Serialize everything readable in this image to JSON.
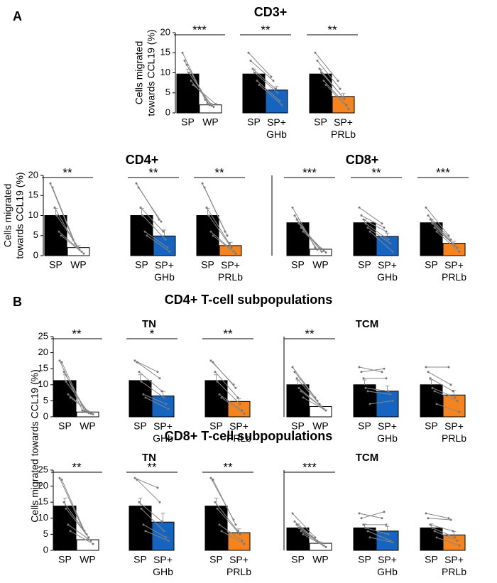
{
  "panel_labels": [
    "A",
    "B"
  ],
  "section_titles": [
    "CD4+ T-cell subpopulations",
    "CD8+ T-cell subpopulations"
  ],
  "shared_ylabel": "Cells migrated  towards CCL19 (%)",
  "chart_data": [
    {
      "type": "paired_bar",
      "title": "CD3+",
      "ylabel": [
        "Cells migrated",
        "towards CCL19 (%)"
      ],
      "ylim": [
        0,
        20
      ],
      "yticks": [
        0,
        5,
        10,
        15,
        20
      ],
      "categories": [
        "SP",
        "WP",
        "SP",
        "SP+ GHb",
        "SP",
        "SP+ PRLb"
      ],
      "values": [
        9.7,
        2,
        9.7,
        5.7,
        9.7,
        4.1
      ],
      "errors": [
        1.2,
        0.4,
        1.2,
        0.9,
        1.2,
        0.7
      ],
      "colors": [
        "#000000",
        "#ffffff",
        "#000000",
        "#1565c0",
        "#000000",
        "#f5841f"
      ],
      "significance": [
        "***",
        "**",
        "**"
      ],
      "pairs": [
        [
          [
            15,
            3.3
          ],
          [
            13,
            2.5
          ],
          [
            12,
            2
          ],
          [
            10,
            1.8
          ],
          [
            8,
            1.5
          ],
          [
            7,
            2.2
          ]
        ],
        [
          [
            15,
            9
          ],
          [
            13,
            8
          ],
          [
            11,
            6
          ],
          [
            10,
            5
          ],
          [
            8,
            3
          ],
          [
            7,
            2
          ]
        ],
        [
          [
            15,
            8
          ],
          [
            13,
            6
          ],
          [
            11,
            4
          ],
          [
            10,
            3.5
          ],
          [
            8,
            2
          ],
          [
            7,
            1
          ]
        ]
      ]
    },
    {
      "type": "paired_bar",
      "title": "CD4+",
      "ylabel": [
        "Cells migrated",
        "towards CCL19 (%)"
      ],
      "ylim": [
        0,
        20
      ],
      "yticks": [
        0,
        5,
        10,
        15,
        20
      ],
      "categories": [
        "SP",
        "WP",
        "SP",
        "SP+ GHb",
        "SP",
        "SP+ PRLb"
      ],
      "values": [
        10,
        2,
        10,
        4.9,
        10,
        2.5
      ],
      "errors": [
        1.8,
        0.5,
        1.8,
        1.5,
        1.8,
        0.8
      ],
      "colors": [
        "#000000",
        "#ffffff",
        "#000000",
        "#1565c0",
        "#000000",
        "#f5841f"
      ],
      "significance": [
        "**",
        "**",
        "**"
      ],
      "pairs": [
        [
          [
            18,
            4
          ],
          [
            17,
            3
          ],
          [
            12,
            2
          ],
          [
            10,
            1.5
          ],
          [
            6,
            1
          ],
          [
            5,
            0.5
          ]
        ],
        [
          [
            18,
            9
          ],
          [
            17,
            8.5
          ],
          [
            12,
            6
          ],
          [
            10,
            4
          ],
          [
            6,
            2
          ],
          [
            5,
            1
          ]
        ],
        [
          [
            18,
            6
          ],
          [
            17,
            5
          ],
          [
            12,
            3
          ],
          [
            10,
            2
          ],
          [
            6,
            1
          ],
          [
            5,
            0.5
          ]
        ]
      ]
    },
    {
      "type": "paired_bar",
      "title": "CD8+",
      "ylim": [
        0,
        20
      ],
      "categories": [
        "SP",
        "WP",
        "SP",
        "SP+ GHb",
        "SP",
        "SP+ PRLb"
      ],
      "values": [
        8.2,
        1.6,
        8.2,
        4.8,
        8.2,
        3.1
      ],
      "errors": [
        0.9,
        0.3,
        0.9,
        0.8,
        0.9,
        0.5
      ],
      "colors": [
        "#000000",
        "#ffffff",
        "#000000",
        "#1565c0",
        "#000000",
        "#f5841f"
      ],
      "significance": [
        "***",
        "**",
        "***"
      ],
      "pairs": [
        [
          [
            12,
            2
          ],
          [
            10,
            1.5
          ],
          [
            9,
            1.8
          ],
          [
            8,
            1
          ],
          [
            7,
            1.2
          ],
          [
            6,
            0.8
          ]
        ],
        [
          [
            12,
            8
          ],
          [
            10,
            7
          ],
          [
            9,
            6
          ],
          [
            8,
            4
          ],
          [
            7,
            3
          ],
          [
            6,
            1
          ]
        ],
        [
          [
            12,
            5
          ],
          [
            10,
            4
          ],
          [
            9,
            3
          ],
          [
            8,
            2.5
          ],
          [
            7,
            2
          ],
          [
            6,
            1
          ]
        ]
      ]
    },
    {
      "type": "paired_bar",
      "title": "TN",
      "ylim": [
        0,
        25
      ],
      "yticks": [
        0,
        5,
        10,
        15,
        20,
        25
      ],
      "categories": [
        "SP",
        "WP",
        "SP",
        "SP+ GHb",
        "SP",
        "SP+ PRLb"
      ],
      "values": [
        11.3,
        1.5,
        11.3,
        6.5,
        11.3,
        4.8
      ],
      "errors": [
        1.8,
        0.3,
        1.8,
        1.4,
        1.8,
        0.9
      ],
      "colors": [
        "#000000",
        "#ffffff",
        "#000000",
        "#1565c0",
        "#000000",
        "#f5841f"
      ],
      "significance": [
        "**",
        "*",
        "**"
      ],
      "pairs": [
        [
          [
            17.5,
            2
          ],
          [
            17,
            1.8
          ],
          [
            14,
            1.5
          ],
          [
            11,
            1.2
          ],
          [
            7,
            1
          ],
          [
            6,
            0.8
          ]
        ],
        [
          [
            17.5,
            14
          ],
          [
            17,
            12
          ],
          [
            14,
            8
          ],
          [
            11,
            6
          ],
          [
            7,
            4
          ],
          [
            6,
            2.5
          ]
        ],
        [
          [
            17.5,
            10
          ],
          [
            17,
            9
          ],
          [
            14,
            6
          ],
          [
            11,
            4
          ],
          [
            7,
            2
          ],
          [
            6,
            1
          ]
        ]
      ]
    },
    {
      "type": "paired_bar",
      "title": "TCM",
      "ylim": [
        0,
        25
      ],
      "categories": [
        "SP",
        "WP",
        "SP",
        "SP+ GHb",
        "SP",
        "SP+ PRLb"
      ],
      "values": [
        10,
        3.2,
        10,
        8,
        10,
        6.8
      ],
      "errors": [
        1.5,
        0.5,
        1.5,
        1.6,
        1.5,
        1.5
      ],
      "colors": [
        "#000000",
        "#ffffff",
        "#000000",
        "#1565c0",
        "#000000",
        "#f5841f"
      ],
      "significance": [
        "**",
        null,
        null
      ],
      "pairs": [
        [
          [
            15.5,
            6
          ],
          [
            14,
            5
          ],
          [
            12,
            4
          ],
          [
            9,
            3
          ],
          [
            8,
            2.5
          ],
          [
            6,
            2
          ]
        ],
        [
          [
            15.5,
            14
          ],
          [
            14,
            15
          ],
          [
            12,
            12
          ],
          [
            9,
            8
          ],
          [
            8,
            7
          ],
          [
            4,
            5
          ]
        ],
        [
          [
            15.5,
            15.5
          ],
          [
            14,
            10
          ],
          [
            12,
            8
          ],
          [
            9,
            6
          ],
          [
            8,
            5
          ],
          [
            4,
            1.5
          ]
        ]
      ]
    },
    {
      "type": "paired_bar",
      "title": "TN",
      "ylim": [
        0,
        25
      ],
      "yticks": [
        0,
        5,
        10,
        15,
        20,
        25
      ],
      "categories": [
        "SP",
        "WP",
        "SP",
        "SP+ GHb",
        "SP",
        "SP+ PRLb"
      ],
      "values": [
        13.8,
        3.3,
        13.8,
        8.8,
        13.8,
        5.5
      ],
      "errors": [
        2.5,
        0.5,
        2.5,
        2.8,
        2.5,
        1.2
      ],
      "colors": [
        "#000000",
        "#ffffff",
        "#000000",
        "#1565c0",
        "#000000",
        "#f5841f"
      ],
      "significance": [
        "**",
        "**",
        "**"
      ],
      "pairs": [
        [
          [
            22.5,
            7
          ],
          [
            22,
            6
          ],
          [
            15,
            5
          ],
          [
            13,
            4
          ],
          [
            8,
            3
          ],
          [
            6,
            2
          ]
        ],
        [
          [
            22.5,
            19.5
          ],
          [
            22,
            15
          ],
          [
            15,
            9
          ],
          [
            13,
            6
          ],
          [
            8,
            4
          ],
          [
            6,
            3
          ]
        ],
        [
          [
            22.5,
            9.5
          ],
          [
            22,
            8
          ],
          [
            15,
            6
          ],
          [
            13,
            5
          ],
          [
            8,
            3
          ],
          [
            6,
            2
          ]
        ]
      ]
    },
    {
      "type": "paired_bar",
      "title": "TCM",
      "ylim": [
        0,
        25
      ],
      "categories": [
        "SP",
        "WP",
        "SP",
        "SP+ GHb",
        "SP",
        "SP+ PRLb"
      ],
      "values": [
        7,
        2.2,
        7,
        6,
        7,
        4.8
      ],
      "errors": [
        1.2,
        0.4,
        1.2,
        1.5,
        1.2,
        1.1
      ],
      "colors": [
        "#000000",
        "#ffffff",
        "#000000",
        "#1565c0",
        "#000000",
        "#f5841f"
      ],
      "significance": [
        "***",
        null,
        null
      ],
      "pairs": [
        [
          [
            11.5,
            4
          ],
          [
            9,
            3
          ],
          [
            8,
            2.5
          ],
          [
            7,
            2
          ],
          [
            6,
            1.5
          ],
          [
            5,
            1
          ]
        ],
        [
          [
            11.5,
            10
          ],
          [
            10,
            12
          ],
          [
            8,
            8
          ],
          [
            7,
            5
          ],
          [
            6,
            3
          ],
          [
            4,
            2.5
          ]
        ],
        [
          [
            11.5,
            10
          ],
          [
            10,
            9.5
          ],
          [
            8,
            6
          ],
          [
            7,
            4
          ],
          [
            6,
            3
          ],
          [
            4,
            1.5
          ]
        ]
      ]
    }
  ]
}
